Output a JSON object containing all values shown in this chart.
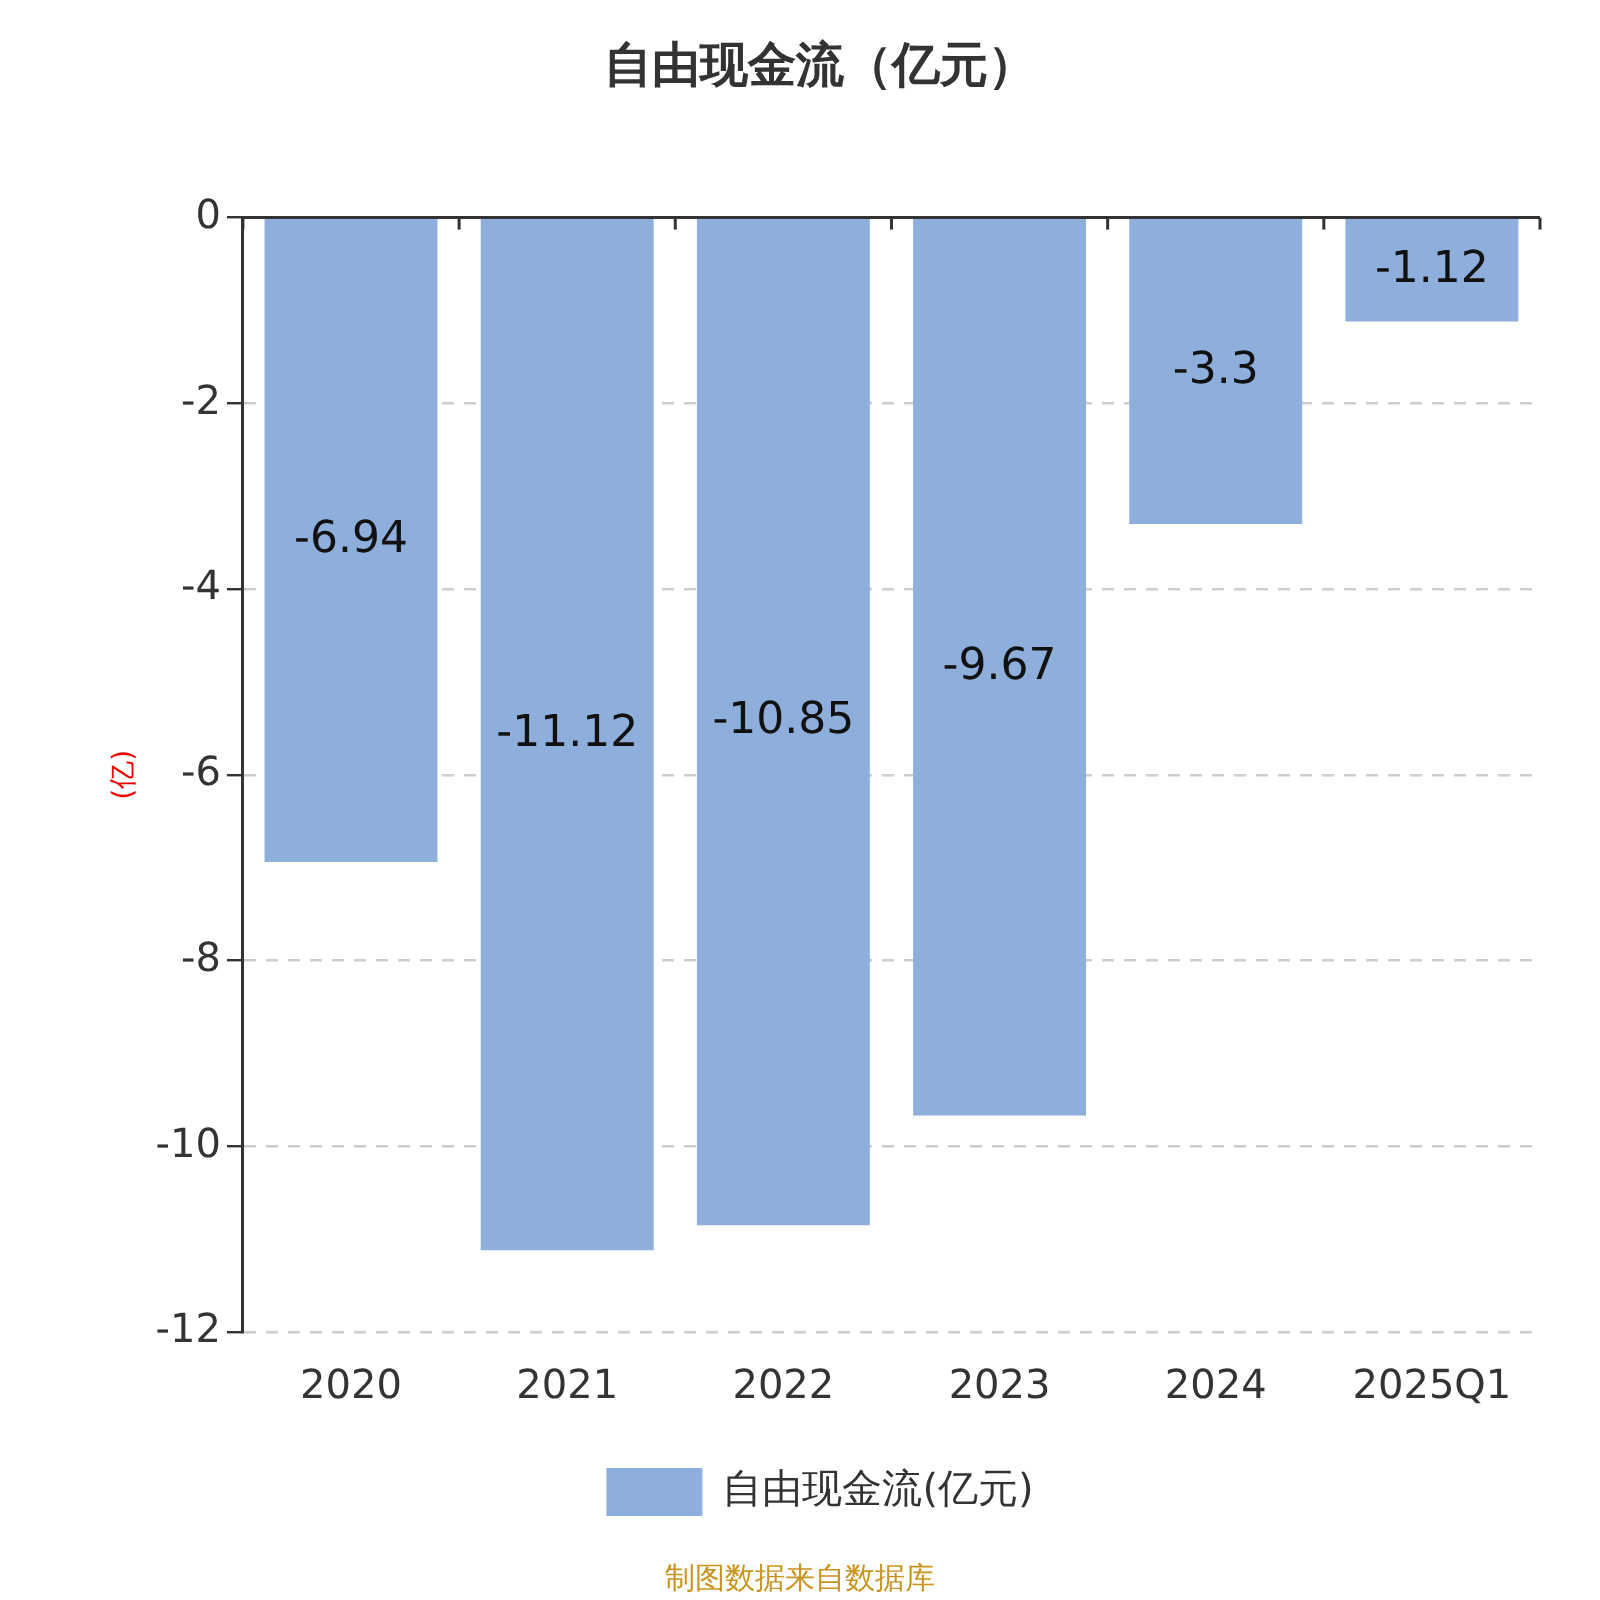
{
  "chart_data": {
    "type": "bar",
    "title": "自由现金流（亿元）",
    "ylabel": "(亿)",
    "categories": [
      "2020",
      "2021",
      "2022",
      "2023",
      "2024",
      "2025Q1"
    ],
    "series": [
      {
        "name": "自由现金流(亿元)",
        "color": "#8eaedb",
        "values": [
          -6.94,
          -11.12,
          -10.85,
          -9.67,
          -3.3,
          -1.12
        ]
      }
    ],
    "ylim": [
      -12,
      0
    ],
    "yticks": [
      0,
      -2,
      -4,
      -6,
      -8,
      -10,
      -12
    ],
    "grid": "y",
    "legend": "bottom",
    "data_labels": true,
    "annotations": [
      "制图数据来自数据库"
    ]
  }
}
